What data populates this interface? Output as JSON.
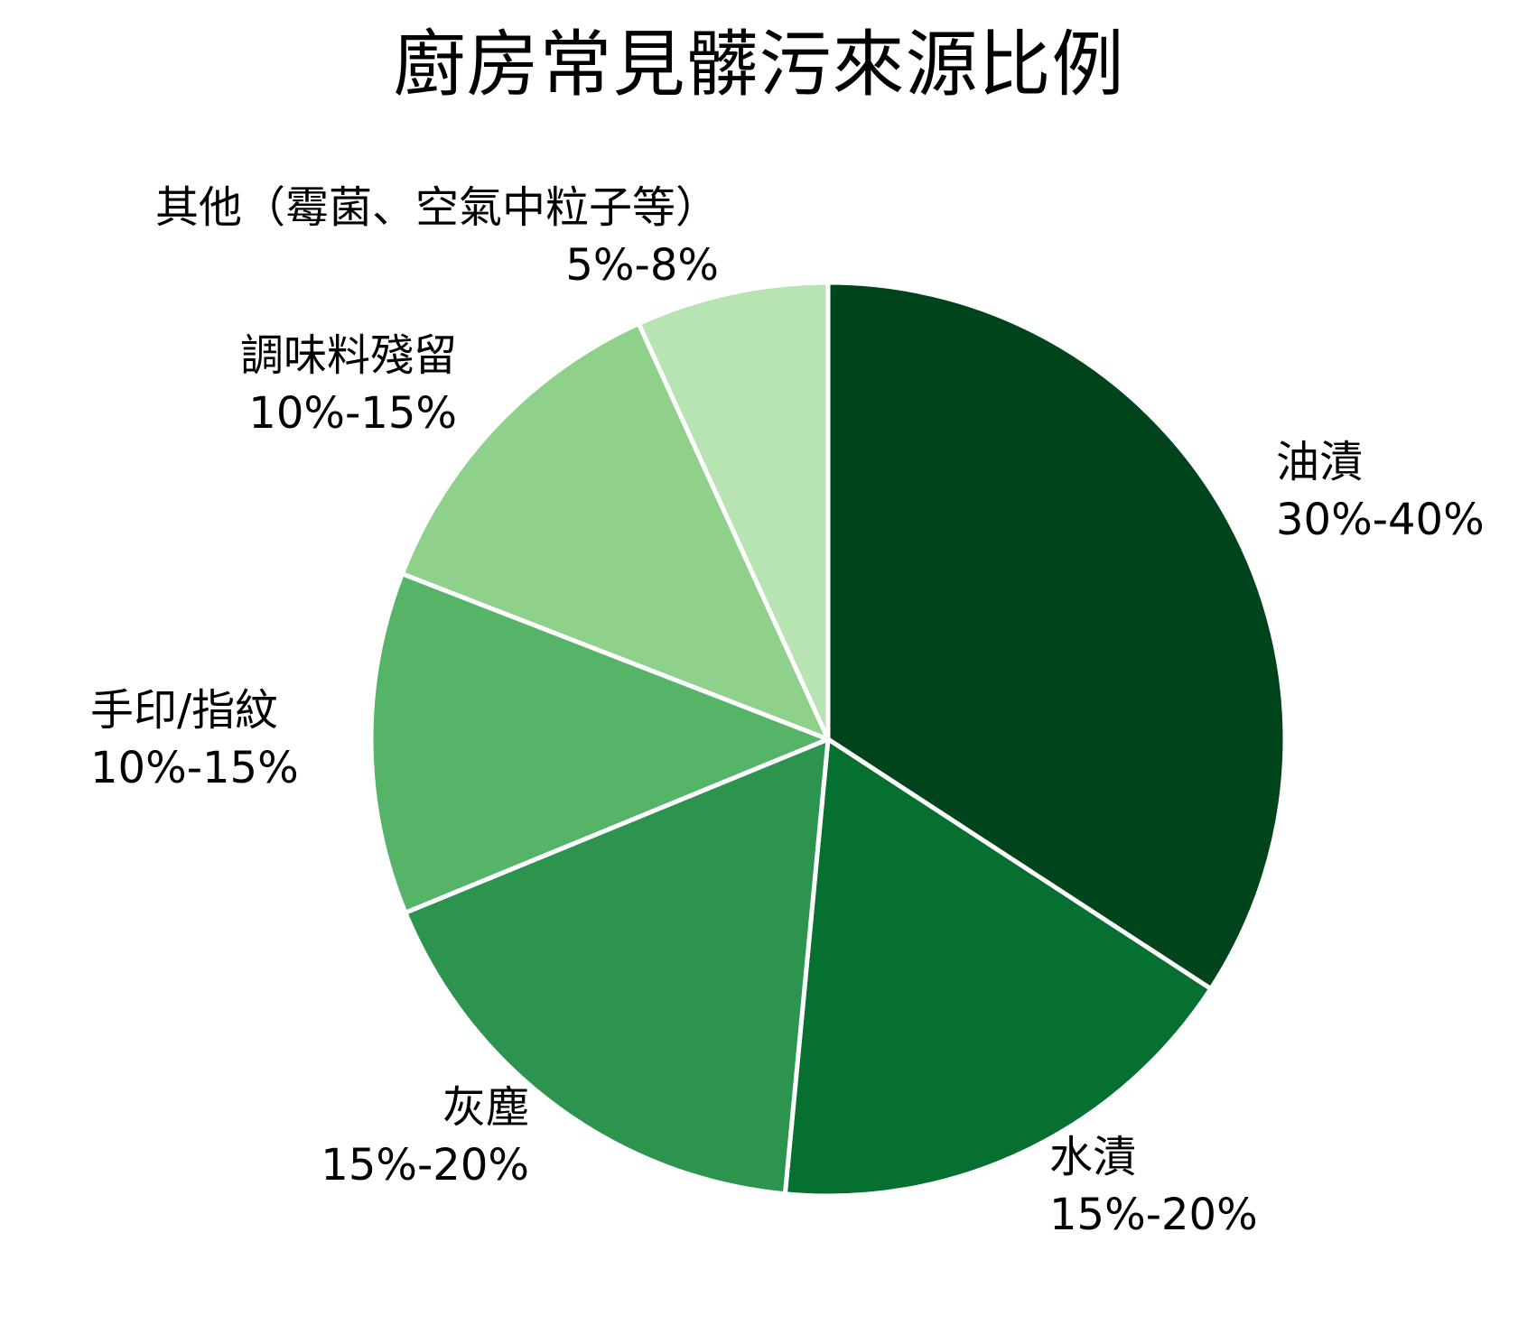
{
  "chart_data": {
    "type": "pie",
    "title": "廚房常見髒污來源比例",
    "start_angle_deg": 0,
    "direction": "clockwise",
    "slices": [
      {
        "label": "油漬",
        "range_text": "30%-40%",
        "value": 34.2,
        "color": "#00441b"
      },
      {
        "label": "水漬",
        "range_text": "15%-20%",
        "value": 17.3,
        "color": "#05702f"
      },
      {
        "label": "灰塵",
        "range_text": "15%-20%",
        "value": 17.3,
        "color": "#2c944e"
      },
      {
        "label": "手印/指紋",
        "range_text": "10%-15%",
        "value": 12.1,
        "color": "#56b469"
      },
      {
        "label": "調味料殘留",
        "range_text": "10%-15%",
        "value": 12.3,
        "color": "#8fd18a"
      },
      {
        "label": "其他（霉菌、空氣中粒子等）",
        "range_text": "5%-8%",
        "value": 6.8,
        "color": "#b8e3b2"
      }
    ],
    "edge_color": "#ffffff",
    "legend": "none (labels placed beside slices)"
  },
  "labels": {
    "oil": {
      "name": "油漬",
      "pct": "30%-40%"
    },
    "water": {
      "name": "水漬",
      "pct": "15%-20%"
    },
    "dust": {
      "name": "灰塵",
      "pct": "15%-20%"
    },
    "hand": {
      "name": "手印/指紋",
      "pct": "10%-15%"
    },
    "seasoning": {
      "name": "調味料殘留",
      "pct": "10%-15%"
    },
    "other": {
      "name": "其他（霉菌、空氣中粒子等）",
      "pct": "5%-8%"
    }
  }
}
